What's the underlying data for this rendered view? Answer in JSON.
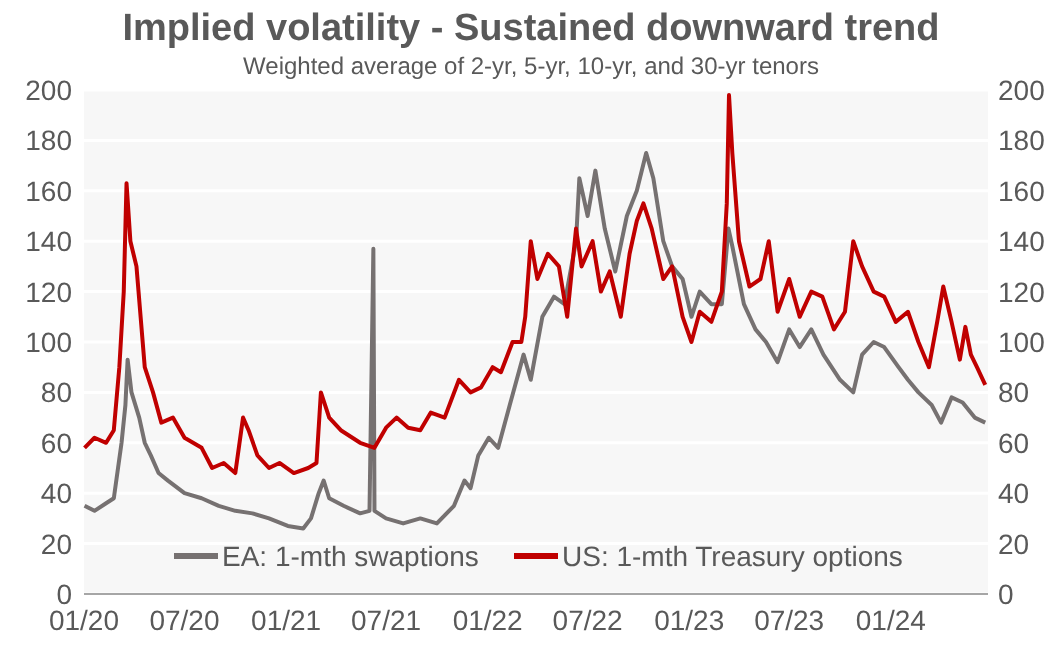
{
  "chart_data": {
    "type": "line",
    "title": "Implied volatility - Sustained downward trend",
    "subtitle": "Weighted average of 2-yr, 5-yr, 10-yr, and 30-yr tenors",
    "xlim": [
      "2020-01-01",
      "2024-06-25"
    ],
    "xticks": [
      {
        "value": "2020-01-01",
        "label": "01/20"
      },
      {
        "value": "2020-07-01",
        "label": "07/20"
      },
      {
        "value": "2021-01-01",
        "label": "01/21"
      },
      {
        "value": "2021-07-01",
        "label": "07/21"
      },
      {
        "value": "2022-01-01",
        "label": "01/22"
      },
      {
        "value": "2022-07-01",
        "label": "07/22"
      },
      {
        "value": "2023-01-01",
        "label": "01/23"
      },
      {
        "value": "2023-07-01",
        "label": "07/23"
      },
      {
        "value": "2024-01-01",
        "label": "01/24"
      }
    ],
    "ylim": [
      0,
      200
    ],
    "yticks": [
      0,
      20,
      40,
      60,
      80,
      100,
      120,
      140,
      160,
      180,
      200
    ],
    "y2lim": [
      0,
      200
    ],
    "y2ticks": [
      0,
      20,
      40,
      60,
      80,
      100,
      120,
      140,
      160,
      180,
      200
    ],
    "grid": "y",
    "legend": "bottom",
    "line_style": "solid",
    "series": [
      {
        "name": "EA: 1-mth swaptions",
        "color": "#767171",
        "x": [
          "2020-01-02",
          "2020-01-20",
          "2020-02-10",
          "2020-02-24",
          "2020-03-09",
          "2020-03-16",
          "2020-03-20",
          "2020-03-27",
          "2020-04-10",
          "2020-04-20",
          "2020-05-01",
          "2020-05-15",
          "2020-06-01",
          "2020-07-01",
          "2020-08-01",
          "2020-09-01",
          "2020-10-01",
          "2020-11-01",
          "2020-12-01",
          "2021-01-04",
          "2021-02-01",
          "2021-02-15",
          "2021-03-01",
          "2021-03-10",
          "2021-03-20",
          "2021-04-15",
          "2021-05-15",
          "2021-06-01",
          "2021-06-08",
          "2021-06-10",
          "2021-07-01",
          "2021-08-01",
          "2021-09-01",
          "2021-10-01",
          "2021-11-01",
          "2021-11-20",
          "2021-12-01",
          "2021-12-15",
          "2022-01-03",
          "2022-01-20",
          "2022-02-10",
          "2022-03-07",
          "2022-03-20",
          "2022-04-10",
          "2022-05-01",
          "2022-05-20",
          "2022-06-10",
          "2022-06-16",
          "2022-07-01",
          "2022-07-15",
          "2022-08-01",
          "2022-08-20",
          "2022-09-10",
          "2022-09-28",
          "2022-10-15",
          "2022-10-28",
          "2022-11-15",
          "2022-12-01",
          "2022-12-20",
          "2023-01-05",
          "2023-01-20",
          "2023-02-10",
          "2023-03-01",
          "2023-03-13",
          "2023-03-20",
          "2023-04-10",
          "2023-05-01",
          "2023-05-20",
          "2023-06-10",
          "2023-07-01",
          "2023-07-20",
          "2023-08-10",
          "2023-09-01",
          "2023-10-01",
          "2023-10-25",
          "2023-11-10",
          "2023-12-01",
          "2023-12-20",
          "2024-01-15",
          "2024-02-01",
          "2024-02-20",
          "2024-03-15",
          "2024-04-01",
          "2024-04-20",
          "2024-05-10",
          "2024-06-01",
          "2024-06-20"
        ],
        "values": [
          35,
          33,
          36,
          38,
          60,
          75,
          93,
          80,
          70,
          60,
          55,
          48,
          45,
          40,
          38,
          35,
          33,
          32,
          30,
          27,
          26,
          30,
          40,
          45,
          38,
          35,
          32,
          33,
          137,
          33,
          30,
          28,
          30,
          28,
          35,
          45,
          42,
          55,
          62,
          58,
          75,
          95,
          85,
          110,
          118,
          115,
          140,
          165,
          150,
          168,
          145,
          128,
          150,
          160,
          175,
          165,
          140,
          130,
          125,
          110,
          120,
          115,
          115,
          145,
          138,
          115,
          105,
          100,
          92,
          105,
          98,
          105,
          95,
          85,
          80,
          95,
          100,
          98,
          90,
          85,
          80,
          75,
          68,
          78,
          76,
          70,
          68
        ]
      },
      {
        "name": "US: 1-mth Treasury options",
        "color": "#c00000",
        "x": [
          "2020-01-02",
          "2020-01-20",
          "2020-02-10",
          "2020-02-24",
          "2020-03-05",
          "2020-03-13",
          "2020-03-18",
          "2020-03-25",
          "2020-04-05",
          "2020-04-20",
          "2020-05-05",
          "2020-05-20",
          "2020-06-10",
          "2020-07-01",
          "2020-08-01",
          "2020-08-20",
          "2020-09-10",
          "2020-10-01",
          "2020-10-15",
          "2020-10-25",
          "2020-11-10",
          "2020-12-01",
          "2020-12-20",
          "2021-01-15",
          "2021-02-10",
          "2021-02-25",
          "2021-03-05",
          "2021-03-20",
          "2021-04-10",
          "2021-05-15",
          "2021-06-10",
          "2021-07-01",
          "2021-07-20",
          "2021-08-10",
          "2021-09-01",
          "2021-09-20",
          "2021-10-15",
          "2021-11-10",
          "2021-12-01",
          "2021-12-20",
          "2022-01-10",
          "2022-01-25",
          "2022-02-15",
          "2022-03-03",
          "2022-03-10",
          "2022-03-20",
          "2022-04-01",
          "2022-04-20",
          "2022-05-10",
          "2022-05-25",
          "2022-06-10",
          "2022-06-20",
          "2022-07-10",
          "2022-07-25",
          "2022-08-10",
          "2022-08-30",
          "2022-09-15",
          "2022-09-28",
          "2022-10-10",
          "2022-10-25",
          "2022-11-15",
          "2022-12-01",
          "2022-12-20",
          "2023-01-05",
          "2023-01-20",
          "2023-02-10",
          "2023-03-01",
          "2023-03-10",
          "2023-03-14",
          "2023-03-20",
          "2023-04-01",
          "2023-04-20",
          "2023-05-10",
          "2023-05-25",
          "2023-06-10",
          "2023-07-01",
          "2023-07-20",
          "2023-08-10",
          "2023-08-30",
          "2023-09-20",
          "2023-10-10",
          "2023-10-25",
          "2023-11-10",
          "2023-12-01",
          "2023-12-20",
          "2024-01-10",
          "2024-02-01",
          "2024-02-20",
          "2024-03-10",
          "2024-03-25",
          "2024-04-05",
          "2024-04-20",
          "2024-05-05",
          "2024-05-15",
          "2024-05-25",
          "2024-06-05",
          "2024-06-20"
        ],
        "values": [
          58,
          62,
          60,
          65,
          90,
          120,
          163,
          140,
          130,
          90,
          80,
          68,
          70,
          62,
          58,
          50,
          52,
          48,
          70,
          65,
          55,
          50,
          52,
          48,
          50,
          52,
          80,
          70,
          65,
          60,
          58,
          66,
          70,
          66,
          65,
          72,
          70,
          85,
          80,
          82,
          90,
          88,
          100,
          100,
          110,
          140,
          125,
          135,
          130,
          110,
          145,
          130,
          140,
          120,
          128,
          110,
          135,
          148,
          155,
          145,
          125,
          130,
          110,
          100,
          112,
          108,
          120,
          155,
          198,
          175,
          140,
          122,
          125,
          140,
          112,
          125,
          110,
          120,
          118,
          105,
          112,
          140,
          130,
          120,
          118,
          108,
          112,
          100,
          90,
          108,
          122,
          108,
          93,
          106,
          95,
          90,
          83
        ]
      }
    ]
  }
}
